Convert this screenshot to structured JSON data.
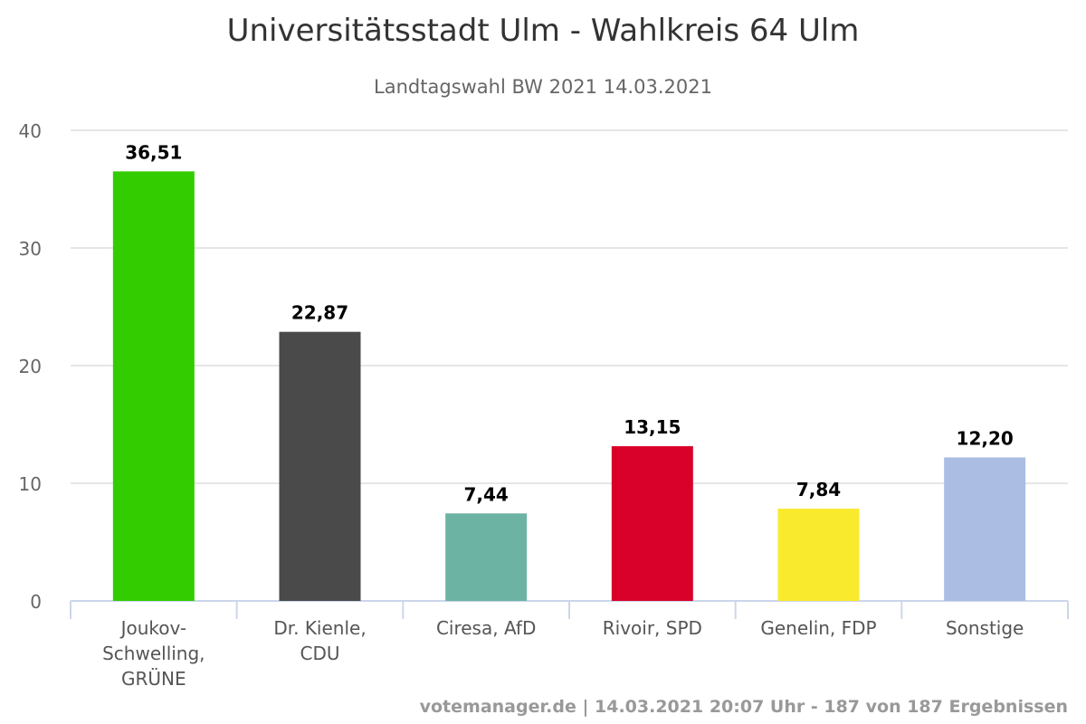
{
  "chart_data": {
    "type": "bar",
    "title": "Universitätsstadt Ulm - Wahlkreis 64 Ulm",
    "subtitle": "Landtagswahl BW 2021 14.03.2021",
    "categories": [
      "Joukov-Schwelling, GRÜNE",
      "Dr. Kienle, CDU",
      "Ciresa, AfD",
      "Rivoir, SPD",
      "Genelin, FDP",
      "Sonstige"
    ],
    "values": [
      36.51,
      22.87,
      7.44,
      13.15,
      7.84,
      12.2
    ],
    "data_labels": [
      "36,51",
      "22,87",
      "7,44",
      "13,15",
      "7,84",
      "12,20"
    ],
    "colors": [
      "#33cc00",
      "#4a4a4a",
      "#6db3a4",
      "#d9002a",
      "#f9ea2e",
      "#abbde3"
    ],
    "yticks": [
      0,
      10,
      20,
      30,
      40
    ],
    "ylim": [
      0,
      40
    ],
    "xlabel": "",
    "ylabel": "",
    "grid": true,
    "legend": "none"
  },
  "footer": "votemanager.de | 14.03.2021 20:07 Uhr - 187 von 187 Ergebnissen"
}
